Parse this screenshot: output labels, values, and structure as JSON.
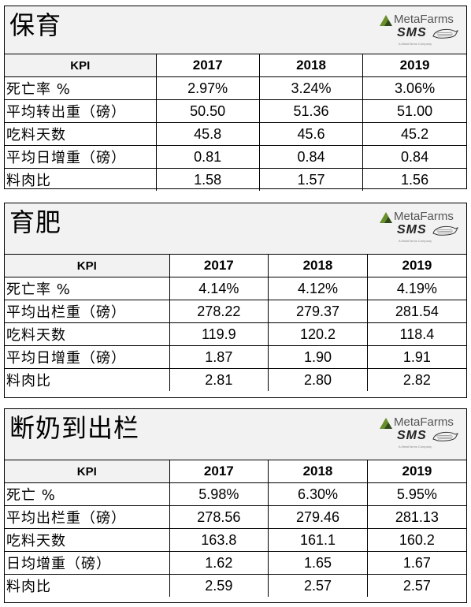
{
  "logo": {
    "brand": "MetaFarms",
    "product": "SMS",
    "tagline": "A MetaFarms Company"
  },
  "kpi_header": "KPI",
  "years": [
    "2017",
    "2018",
    "2019"
  ],
  "sections": [
    {
      "title": "保育",
      "rows": [
        {
          "label": "死亡率 %",
          "values": [
            "2.97%",
            "3.24%",
            "3.06%"
          ]
        },
        {
          "label": "平均转出重（磅）",
          "values": [
            "50.50",
            "51.36",
            "51.00"
          ]
        },
        {
          "label": "吃料天数",
          "values": [
            "45.8",
            "45.6",
            "45.2"
          ]
        },
        {
          "label": "平均日增重（磅）",
          "values": [
            "0.81",
            "0.84",
            "0.84"
          ]
        },
        {
          "label": "料肉比",
          "values": [
            "1.58",
            "1.57",
            "1.56"
          ]
        }
      ]
    },
    {
      "title": "育肥",
      "rows": [
        {
          "label": "死亡率 %",
          "values": [
            "4.14%",
            "4.12%",
            "4.19%"
          ]
        },
        {
          "label": "平均出栏重（磅）",
          "values": [
            "278.22",
            "279.37",
            "281.54"
          ]
        },
        {
          "label": "吃料天数",
          "values": [
            "119.9",
            "120.2",
            "118.4"
          ]
        },
        {
          "label": "平均日增重（磅）",
          "values": [
            "1.87",
            "1.90",
            "1.91"
          ]
        },
        {
          "label": "料肉比",
          "values": [
            "2.81",
            "2.80",
            "2.82"
          ]
        }
      ]
    },
    {
      "title": "断奶到出栏",
      "rows": [
        {
          "label": "死亡 %",
          "values": [
            "5.98%",
            "6.30%",
            "5.95%"
          ]
        },
        {
          "label": "平均出栏重（磅）",
          "values": [
            "278.56",
            "279.46",
            "281.13"
          ]
        },
        {
          "label": "吃料天数",
          "values": [
            "163.8",
            "161.1",
            "160.2"
          ]
        },
        {
          "label": "日均增重（磅）",
          "values": [
            "1.62",
            "1.65",
            "1.67"
          ]
        },
        {
          "label": "料肉比",
          "values": [
            "2.59",
            "2.57",
            "2.57"
          ]
        }
      ]
    }
  ],
  "colors": {
    "header_bg": "#f2f2f2",
    "logo_green": "#6a8e2c",
    "border": "#000000"
  }
}
